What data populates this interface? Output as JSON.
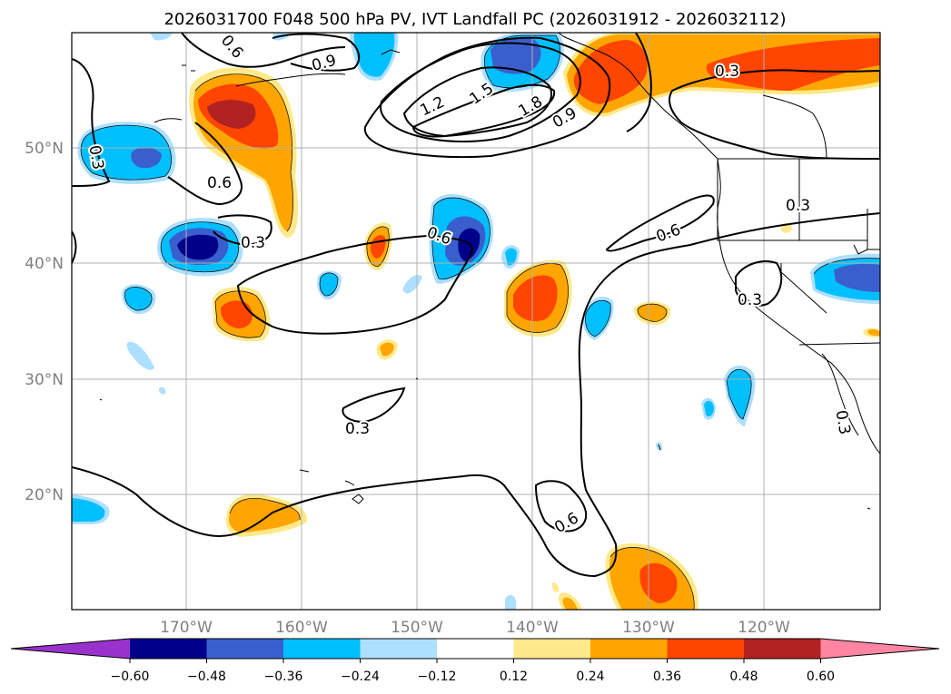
{
  "title": "2026031700 F048 500 hPa PV, IVT Landfall PC (2026031912 - 2026032112)",
  "lat_labels": [
    "50°N",
    "40°N",
    "30°N",
    "20°N"
  ],
  "lon_labels": [
    "170°W",
    "160°W",
    "150°W",
    "140°W",
    "130°W",
    "120°W"
  ],
  "colorbar": {
    "ticks": [
      "−0.60",
      "−0.48",
      "−0.36",
      "−0.24",
      "−0.12",
      "0.12",
      "0.24",
      "0.36",
      "0.48",
      "0.60"
    ],
    "colors": [
      "#9932CC",
      "#00008B",
      "#3A5FCD",
      "#00BFFF",
      "#ADDFFF",
      "#FFFFFF",
      "#FFE98A",
      "#FFA500",
      "#FF4500",
      "#B22222",
      "#FF85A2"
    ]
  },
  "contour_labels": [
    "0.6",
    "1.2",
    "1.5",
    "1.8",
    "0.9",
    "0.3",
    "0.3",
    "0.6",
    "0.3",
    "0.6",
    "0.6",
    "0.3",
    "0.3",
    "0.3",
    "0.6",
    "0.3",
    "0.9"
  ]
}
